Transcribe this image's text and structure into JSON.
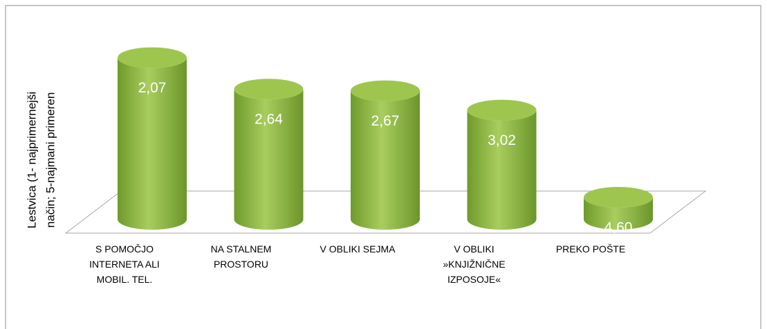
{
  "chart_data": {
    "type": "cylinder",
    "ylabel": [
      "Lestvica (1- najprimernejši",
      "način; 5-najmani primeren"
    ],
    "categories": [
      "S POMOČJO INTERNETA ALI MOBIL. TEL.",
      "NA STALNEM PROSTORU",
      "V OBLIKI SEJMA",
      "V OBLIKI »KNJIŽNIČNE IZPOSOJE«",
      "PREKO POŠTE"
    ],
    "values": [
      2.07,
      2.64,
      2.67,
      3.02,
      4.6
    ],
    "value_labels": [
      "2,07",
      "2,64",
      "2,67",
      "3,02",
      "4,60"
    ],
    "color": "#8db546",
    "ylim": [
      5,
      1
    ]
  }
}
